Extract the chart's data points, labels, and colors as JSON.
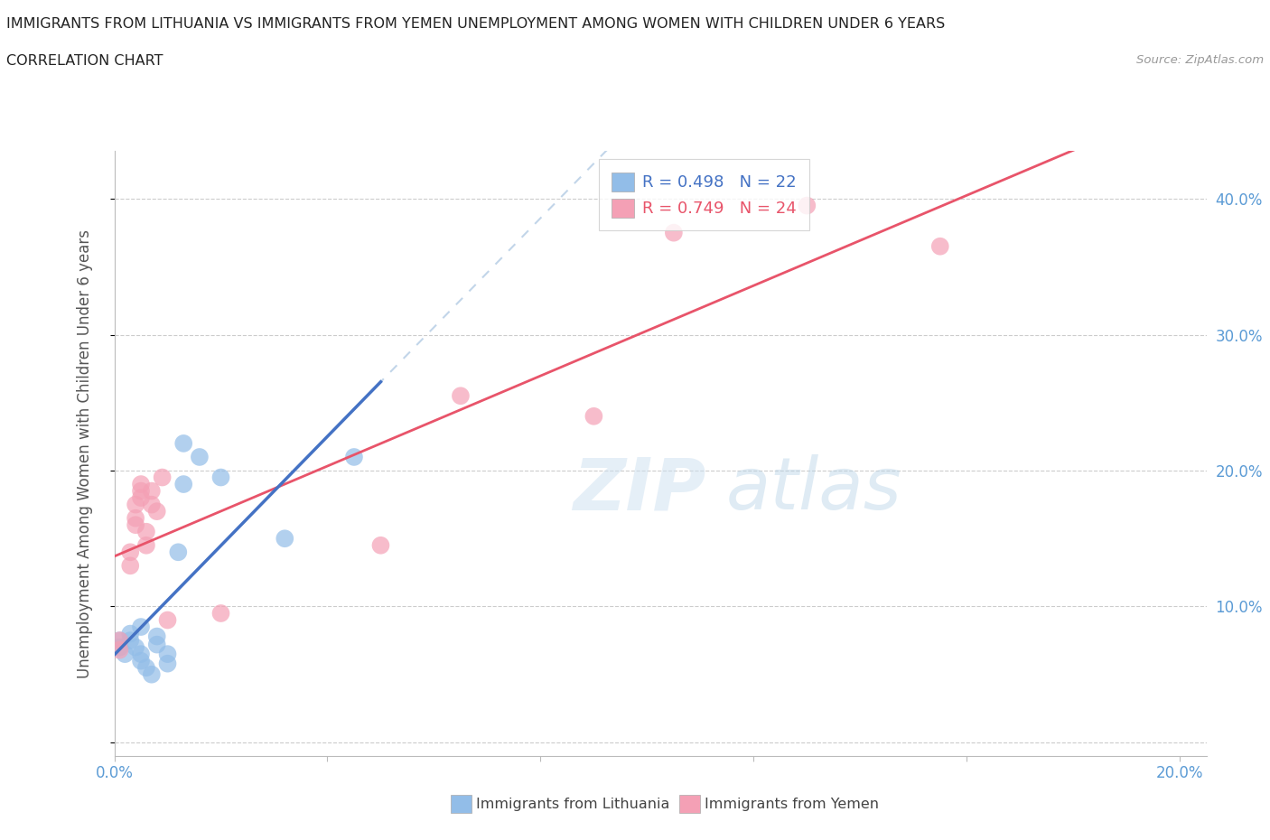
{
  "title_line1": "IMMIGRANTS FROM LITHUANIA VS IMMIGRANTS FROM YEMEN UNEMPLOYMENT AMONG WOMEN WITH CHILDREN UNDER 6 YEARS",
  "title_line2": "CORRELATION CHART",
  "source_text": "Source: ZipAtlas.com",
  "ylabel": "Unemployment Among Women with Children Under 6 years",
  "xlim": [
    0.0,
    0.205
  ],
  "ylim": [
    -0.01,
    0.435
  ],
  "r_lithuania": 0.498,
  "n_lithuania": 22,
  "r_yemen": 0.749,
  "n_yemen": 24,
  "color_lithuania": "#92bde8",
  "color_yemen": "#f4a0b5",
  "color_lithuania_line": "#4472c4",
  "color_lithuania_dash": "#a8c4e0",
  "color_yemen_line": "#e8546a",
  "watermark_zip": "ZIP",
  "watermark_atlas": "atlas",
  "scatter_lithuania": [
    [
      0.001,
      0.075
    ],
    [
      0.001,
      0.07
    ],
    [
      0.002,
      0.065
    ],
    [
      0.003,
      0.08
    ],
    [
      0.003,
      0.075
    ],
    [
      0.004,
      0.07
    ],
    [
      0.005,
      0.085
    ],
    [
      0.005,
      0.065
    ],
    [
      0.005,
      0.06
    ],
    [
      0.006,
      0.055
    ],
    [
      0.007,
      0.05
    ],
    [
      0.008,
      0.078
    ],
    [
      0.008,
      0.072
    ],
    [
      0.01,
      0.065
    ],
    [
      0.01,
      0.058
    ],
    [
      0.012,
      0.14
    ],
    [
      0.013,
      0.19
    ],
    [
      0.013,
      0.22
    ],
    [
      0.016,
      0.21
    ],
    [
      0.02,
      0.195
    ],
    [
      0.032,
      0.15
    ],
    [
      0.045,
      0.21
    ]
  ],
  "scatter_yemen": [
    [
      0.001,
      0.075
    ],
    [
      0.001,
      0.068
    ],
    [
      0.003,
      0.14
    ],
    [
      0.003,
      0.13
    ],
    [
      0.004,
      0.175
    ],
    [
      0.004,
      0.165
    ],
    [
      0.004,
      0.16
    ],
    [
      0.005,
      0.185
    ],
    [
      0.005,
      0.18
    ],
    [
      0.005,
      0.19
    ],
    [
      0.006,
      0.155
    ],
    [
      0.006,
      0.145
    ],
    [
      0.007,
      0.185
    ],
    [
      0.007,
      0.175
    ],
    [
      0.008,
      0.17
    ],
    [
      0.009,
      0.195
    ],
    [
      0.01,
      0.09
    ],
    [
      0.02,
      0.095
    ],
    [
      0.05,
      0.145
    ],
    [
      0.065,
      0.255
    ],
    [
      0.09,
      0.24
    ],
    [
      0.105,
      0.375
    ],
    [
      0.13,
      0.395
    ],
    [
      0.155,
      0.365
    ]
  ]
}
